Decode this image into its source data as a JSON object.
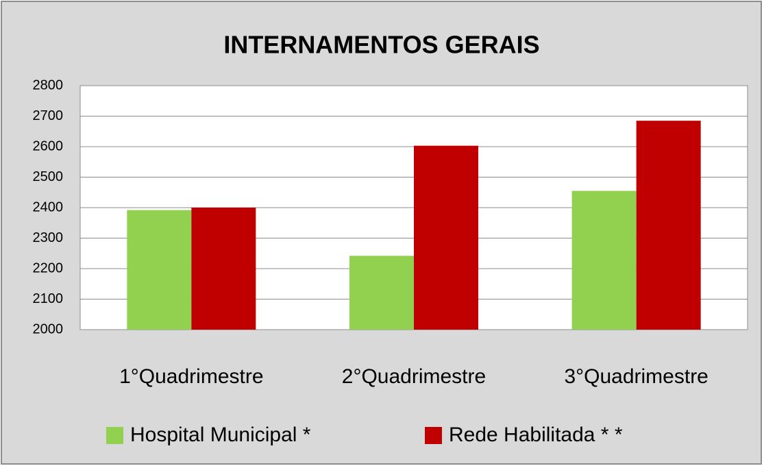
{
  "chart_data": {
    "type": "bar",
    "title": "INTERNAMENTOS GERAIS",
    "categories": [
      "1°Quadrimestre",
      "2°Quadrimestre",
      "3°Quadrimestre"
    ],
    "series": [
      {
        "name": "Hospital Municipal *",
        "color": "#92d050",
        "values": [
          2392,
          2242,
          2455
        ]
      },
      {
        "name": "Rede Habilitada * *",
        "color": "#c00000",
        "values": [
          2400,
          2603,
          2685
        ]
      }
    ],
    "ylim": [
      2000,
      2800
    ],
    "yticks": [
      2000,
      2100,
      2200,
      2300,
      2400,
      2500,
      2600,
      2700,
      2800
    ],
    "grid": true,
    "legend": "bottom"
  }
}
